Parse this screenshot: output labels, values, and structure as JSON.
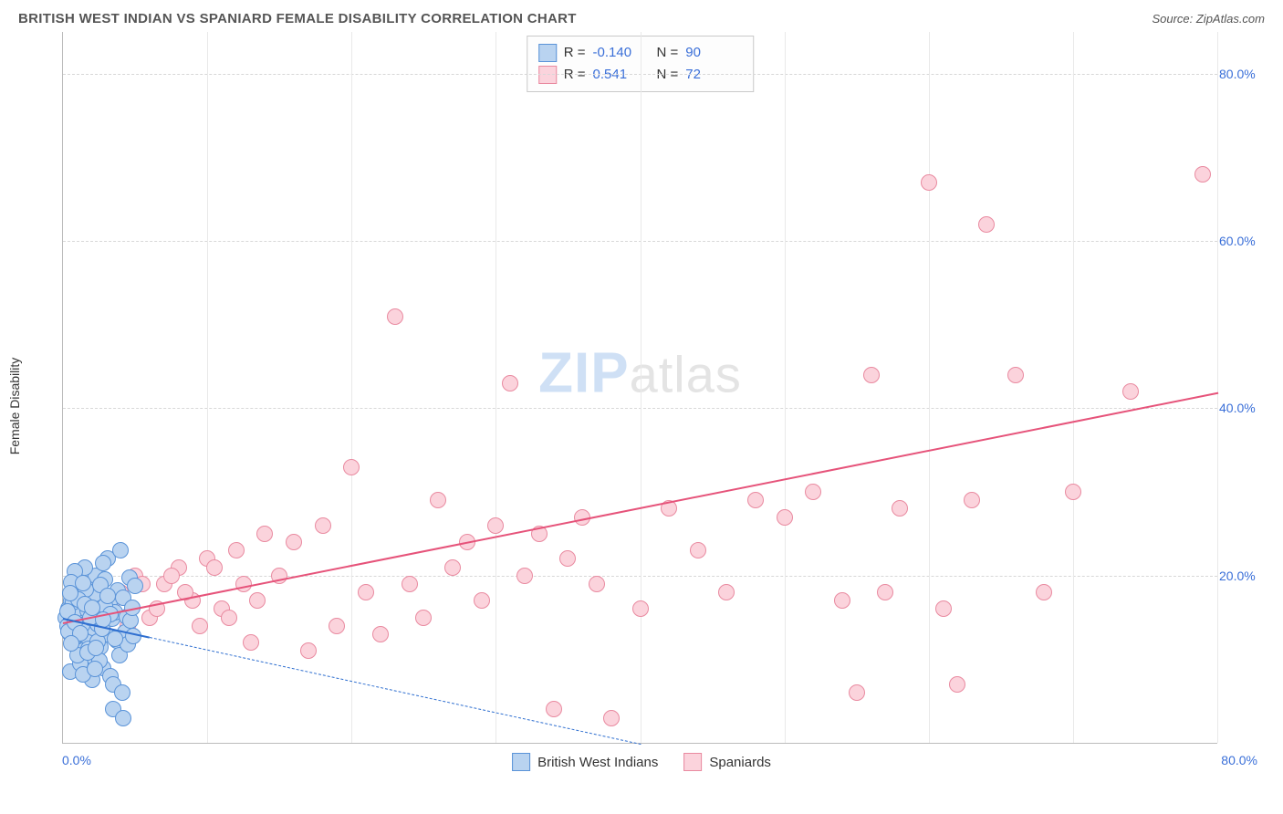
{
  "header": {
    "title": "BRITISH WEST INDIAN VS SPANIARD FEMALE DISABILITY CORRELATION CHART",
    "source_label": "Source: ",
    "source_name": "ZipAtlas.com"
  },
  "watermark": {
    "part1": "ZIP",
    "part2": "atlas"
  },
  "axes": {
    "y_label": "Female Disability",
    "x_min": 0,
    "x_max": 80,
    "y_min": 0,
    "y_max": 85,
    "x_tick_min_label": "0.0%",
    "x_tick_max_label": "80.0%",
    "y_ticks": [
      {
        "v": 20,
        "label": "20.0%"
      },
      {
        "v": 40,
        "label": "40.0%"
      },
      {
        "v": 60,
        "label": "60.0%"
      },
      {
        "v": 80,
        "label": "80.0%"
      }
    ],
    "x_grid": [
      10,
      20,
      30,
      40,
      50,
      60,
      70,
      80
    ],
    "grid_color": "#d8d8d8",
    "axis_color": "#bbbbbb",
    "tick_color": "#3a6fd8",
    "label_fontsize": 14
  },
  "series": {
    "a": {
      "name": "British West Indians",
      "fill": "#b9d3f0",
      "stroke": "#5a93d8",
      "line_color": "#2f6fd0",
      "marker_radius": 9,
      "R_label": "R =",
      "R": "-0.140",
      "N_label": "N =",
      "N": "90",
      "trend": {
        "x1": 0,
        "y1": 15.0,
        "x2": 40,
        "y2": 0,
        "solid_until_x": 6
      },
      "points": [
        [
          0.2,
          15
        ],
        [
          0.3,
          14
        ],
        [
          0.4,
          16
        ],
        [
          0.5,
          13
        ],
        [
          0.6,
          17
        ],
        [
          0.7,
          12
        ],
        [
          0.8,
          18
        ],
        [
          0.9,
          14
        ],
        [
          1.0,
          15.5
        ],
        [
          1.1,
          16
        ],
        [
          1.2,
          13.5
        ],
        [
          1.3,
          17.5
        ],
        [
          1.4,
          11
        ],
        [
          1.5,
          19
        ],
        [
          1.6,
          14.5
        ],
        [
          1.7,
          15.8
        ],
        [
          1.8,
          12.5
        ],
        [
          1.9,
          16.5
        ],
        [
          2.0,
          18.5
        ],
        [
          2.1,
          13.8
        ],
        [
          2.2,
          10
        ],
        [
          2.3,
          20
        ],
        [
          2.4,
          14.2
        ],
        [
          2.5,
          15.3
        ],
        [
          2.6,
          11.5
        ],
        [
          2.7,
          17
        ],
        [
          2.8,
          9
        ],
        [
          2.9,
          19.5
        ],
        [
          3.0,
          13
        ],
        [
          3.1,
          22
        ],
        [
          3.2,
          16.8
        ],
        [
          3.3,
          8
        ],
        [
          3.4,
          14.8
        ],
        [
          3.5,
          7
        ],
        [
          3.6,
          15.6
        ],
        [
          3.7,
          12.2
        ],
        [
          3.8,
          18.2
        ],
        [
          3.9,
          10.5
        ],
        [
          4.0,
          23
        ],
        [
          4.1,
          6
        ],
        [
          4.2,
          17.3
        ],
        [
          4.3,
          13.2
        ],
        [
          4.4,
          15.1
        ],
        [
          4.5,
          11.8
        ],
        [
          4.6,
          19.8
        ],
        [
          4.7,
          14.6
        ],
        [
          4.8,
          16.2
        ],
        [
          4.9,
          12.8
        ],
        [
          5.0,
          18.8
        ],
        [
          0.5,
          8.5
        ],
        [
          1.2,
          9.5
        ],
        [
          2.0,
          7.5
        ],
        [
          1.5,
          21
        ],
        [
          0.8,
          20.5
        ],
        [
          2.8,
          21.5
        ],
        [
          3.5,
          4
        ],
        [
          4.2,
          3
        ],
        [
          1.0,
          10.5
        ],
        [
          1.8,
          11.2
        ],
        [
          2.5,
          9.8
        ],
        [
          0.6,
          19.2
        ],
        [
          1.4,
          8.2
        ],
        [
          2.2,
          17.8
        ],
        [
          0.9,
          12.8
        ],
        [
          1.6,
          18.3
        ],
        [
          2.4,
          12.1
        ],
        [
          0.7,
          16.8
        ],
        [
          1.3,
          14.1
        ],
        [
          2.1,
          15.9
        ],
        [
          2.9,
          16.4
        ],
        [
          0.4,
          13.3
        ],
        [
          1.1,
          17.1
        ],
        [
          1.9,
          14.9
        ],
        [
          2.7,
          13.6
        ],
        [
          0.3,
          15.7
        ],
        [
          1.7,
          10.8
        ],
        [
          2.6,
          18.9
        ],
        [
          3.3,
          15.4
        ],
        [
          0.8,
          14.4
        ],
        [
          1.5,
          16.6
        ],
        [
          2.3,
          11.3
        ],
        [
          3.1,
          17.6
        ],
        [
          0.5,
          17.9
        ],
        [
          1.2,
          13.1
        ],
        [
          2.0,
          16.1
        ],
        [
          2.8,
          14.7
        ],
        [
          3.6,
          12.4
        ],
        [
          0.6,
          11.9
        ],
        [
          1.4,
          19.1
        ],
        [
          2.2,
          8.8
        ]
      ]
    },
    "b": {
      "name": "Spaniards",
      "fill": "#fbd3dc",
      "stroke": "#e98aa0",
      "line_color": "#e6537a",
      "marker_radius": 9,
      "R_label": "R =",
      "R": "0.541",
      "N_label": "N =",
      "N": "72",
      "trend": {
        "x1": 0,
        "y1": 14.5,
        "x2": 80,
        "y2": 42
      },
      "points": [
        [
          1,
          14
        ],
        [
          2,
          16
        ],
        [
          3,
          13
        ],
        [
          4,
          18
        ],
        [
          5,
          20
        ],
        [
          6,
          15
        ],
        [
          7,
          19
        ],
        [
          8,
          21
        ],
        [
          9,
          17
        ],
        [
          10,
          22
        ],
        [
          11,
          16
        ],
        [
          12,
          23
        ],
        [
          13,
          12
        ],
        [
          14,
          25
        ],
        [
          15,
          20
        ],
        [
          16,
          24
        ],
        [
          17,
          11
        ],
        [
          18,
          26
        ],
        [
          19,
          14
        ],
        [
          20,
          33
        ],
        [
          21,
          18
        ],
        [
          22,
          13
        ],
        [
          23,
          51
        ],
        [
          24,
          19
        ],
        [
          25,
          15
        ],
        [
          26,
          29
        ],
        [
          27,
          21
        ],
        [
          28,
          24
        ],
        [
          29,
          17
        ],
        [
          30,
          26
        ],
        [
          31,
          43
        ],
        [
          32,
          20
        ],
        [
          33,
          25
        ],
        [
          34,
          4
        ],
        [
          35,
          22
        ],
        [
          36,
          27
        ],
        [
          37,
          19
        ],
        [
          38,
          3
        ],
        [
          40,
          16
        ],
        [
          42,
          28
        ],
        [
          44,
          23
        ],
        [
          46,
          18
        ],
        [
          48,
          29
        ],
        [
          50,
          27
        ],
        [
          52,
          30
        ],
        [
          54,
          17
        ],
        [
          55,
          6
        ],
        [
          56,
          44
        ],
        [
          57,
          18
        ],
        [
          58,
          28
        ],
        [
          60,
          67
        ],
        [
          61,
          16
        ],
        [
          62,
          7
        ],
        [
          63,
          29
        ],
        [
          64,
          62
        ],
        [
          66,
          44
        ],
        [
          68,
          18
        ],
        [
          70,
          30
        ],
        [
          74,
          42
        ],
        [
          79,
          68
        ],
        [
          2.5,
          15
        ],
        [
          3.5,
          17
        ],
        [
          4.5,
          14
        ],
        [
          5.5,
          19
        ],
        [
          6.5,
          16
        ],
        [
          7.5,
          20
        ],
        [
          8.5,
          18
        ],
        [
          9.5,
          14
        ],
        [
          10.5,
          21
        ],
        [
          11.5,
          15
        ],
        [
          12.5,
          19
        ],
        [
          13.5,
          17
        ]
      ]
    }
  },
  "legend_bottom": [
    {
      "key": "a"
    },
    {
      "key": "b"
    }
  ]
}
